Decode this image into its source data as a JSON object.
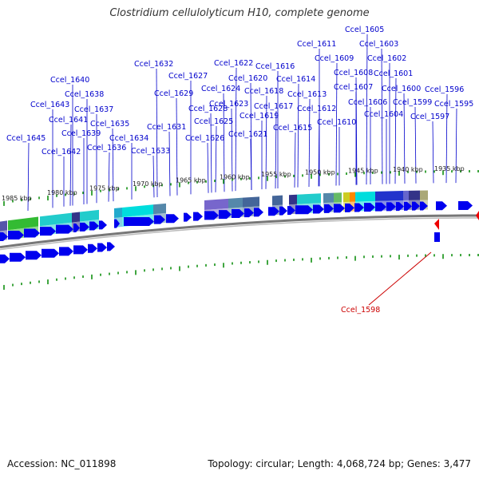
{
  "title": "Clostridium cellulolyticum H10, complete genome",
  "footer": {
    "accession": "Accession: NC_011898",
    "summary": "Topology: circular; Length: 4,068,724 bp; Genes: 3,477"
  },
  "colors": {
    "gene_forward": "#0000ee",
    "gene_reverse": "#ee0000",
    "label": "#0000cc",
    "label_reverse": "#cc0000",
    "tick": "#008800",
    "backbone": "#777777"
  },
  "scale_labels": [
    "1935 kbp",
    "1940 kbp",
    "1945 kbp",
    "1950 kbp",
    "1955 kbp",
    "1960 kbp",
    "1965 kbp",
    "1970 kbp",
    "1975 kbp",
    "1980 kbp",
    "1985 kbp"
  ],
  "gene_labels": [
    "Ccel_1605",
    "Ccel_1611",
    "Ccel_1603",
    "Ccel_1609",
    "Ccel_1602",
    "Ccel_1632",
    "Ccel_1622",
    "Ccel_1616",
    "Ccel_1608",
    "Ccel_1601",
    "Ccel_1627",
    "Ccel_1620",
    "Ccel_1614",
    "Ccel_1640",
    "Ccel_1624",
    "Ccel_1618",
    "Ccel_1607",
    "Ccel_1600",
    "Ccel_1596",
    "Ccel_1638",
    "Ccel_1629",
    "Ccel_1613",
    "Ccel_1606",
    "Ccel_1599",
    "Ccel_1595",
    "Ccel_1643",
    "Ccel_1623",
    "Ccel_1617",
    "Ccel_1637",
    "Ccel_1628",
    "Ccel_1612",
    "Ccel_1604",
    "Ccel_1597",
    "Ccel_1641",
    "Ccel_1619",
    "Ccel_1635",
    "Ccel_1625",
    "Ccel_1610",
    "Ccel_1631",
    "Ccel_1615",
    "Ccel_1639",
    "Ccel_1621",
    "Ccel_1645",
    "Ccel_1634",
    "Ccel_1626",
    "Ccel_1636",
    "Ccel_1642",
    "Ccel_1633"
  ],
  "reverse_gene_label": "Ccel_1598"
}
